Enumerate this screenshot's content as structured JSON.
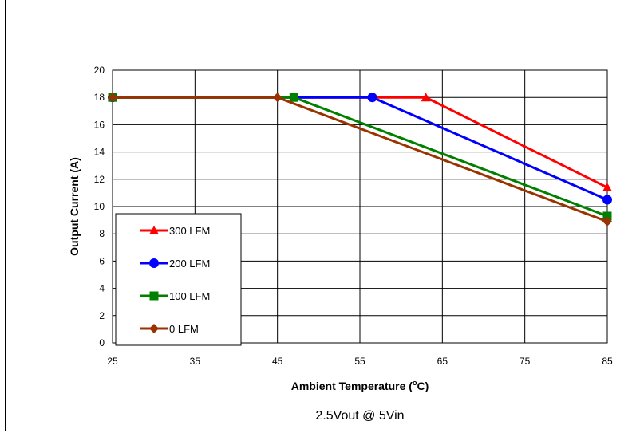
{
  "chart_data": {
    "type": "line",
    "title": "",
    "caption": "2.5Vout @ 5Vin",
    "xlabel_main": "Ambient Temperature (",
    "xlabel_sup": "o",
    "xlabel_end": "C)",
    "ylabel": "Output Current (A)",
    "xlim": [
      25,
      85
    ],
    "ylim": [
      0,
      20
    ],
    "xticks": [
      25,
      35,
      45,
      55,
      65,
      75,
      85
    ],
    "yticks": [
      0,
      2,
      4,
      6,
      8,
      10,
      12,
      14,
      16,
      18,
      20
    ],
    "grid": true,
    "legend_position": "bottom-left",
    "series": [
      {
        "name": "300 LFM",
        "color": "#ff0000",
        "marker": "triangle",
        "x": [
          25,
          63,
          85
        ],
        "y": [
          18,
          18,
          11.4
        ]
      },
      {
        "name": "200 LFM",
        "color": "#0000ff",
        "marker": "circle",
        "x": [
          25,
          56.5,
          85
        ],
        "y": [
          18,
          18,
          10.5
        ]
      },
      {
        "name": "100 LFM",
        "color": "#008000",
        "marker": "square",
        "x": [
          25,
          47,
          85
        ],
        "y": [
          18,
          18,
          9.3
        ]
      },
      {
        "name": "0 LFM",
        "color": "#993300",
        "marker": "diamond",
        "x": [
          25,
          45,
          85
        ],
        "y": [
          18,
          18,
          8.9
        ]
      }
    ]
  }
}
